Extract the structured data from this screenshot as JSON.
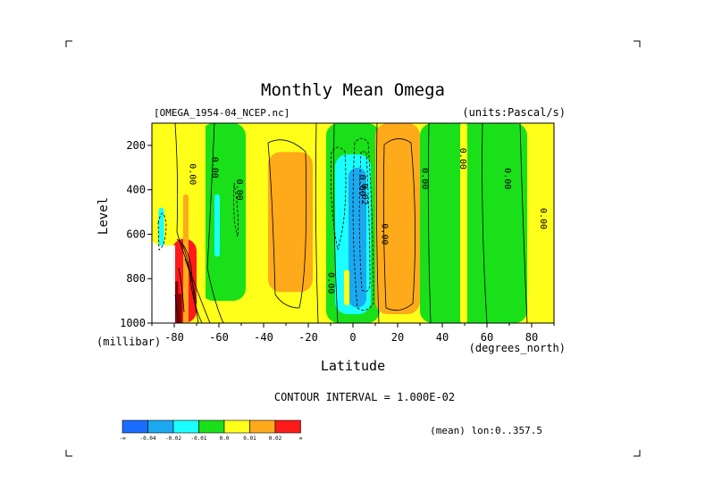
{
  "chart_data": {
    "type": "contour",
    "title": "Monthly Mean Omega",
    "file_label": "[OMEGA_1954-04_NCEP.nc]",
    "units_label": "(units:Pascal/s)",
    "xlabel": "Latitude",
    "x_units": "(degrees_north)",
    "ylabel": "Level",
    "y_units": "(millibar)",
    "x_ticks": [
      -80,
      -60,
      -40,
      -20,
      0,
      20,
      40,
      60,
      80
    ],
    "x_tick_labels": [
      "-80",
      "-60",
      "-40",
      "-20",
      "0",
      "20",
      "40",
      "60",
      "80"
    ],
    "y_ticks": [
      200,
      400,
      600,
      800,
      1000
    ],
    "y_tick_labels": [
      "200",
      "400",
      "600",
      "800",
      "1000"
    ],
    "xlim": [
      -90,
      90
    ],
    "ylim": [
      1000,
      100
    ],
    "contour_interval_text": "CONTOUR INTERVAL = 1.000E-02",
    "mean_text": "(mean) lon:0..357.5",
    "contour_labels": [
      "0.00",
      "0.00",
      "0.00",
      "0.00",
      "0.02",
      "0.00",
      "0.00",
      "0.00",
      "0.00",
      "0.00",
      "0.00"
    ],
    "colorbar": {
      "colors": [
        "#1a6cff",
        "#1aa9f0",
        "#1affff",
        "#1ae01a",
        "#ffff1a",
        "#ffaa1a",
        "#ff1a1a"
      ],
      "labels": [
        "-∞",
        "-0.04",
        "-0.02",
        "-0.01",
        "0.0",
        "0.01",
        "0.02",
        "∞"
      ]
    },
    "regions": [
      {
        "level": "0.0 to 0.01",
        "color": "#ffff1a",
        "lat": [
          -90,
          90
        ],
        "p": [
          100,
          1000
        ]
      },
      {
        "level": "-0.01 to 0.0",
        "color": "#1ae01a",
        "lat": [
          -68,
          -48
        ],
        "p": [
          100,
          900
        ]
      },
      {
        "level": "-0.01 to 0.0",
        "color": "#1ae01a",
        "lat": [
          -12,
          12
        ],
        "p": [
          100,
          1000
        ]
      },
      {
        "level": "-0.01 to 0.0",
        "color": "#1ae01a",
        "lat": [
          30,
          78
        ],
        "p": [
          100,
          1000
        ]
      },
      {
        "level": "0.01 to 0.02",
        "color": "#ffaa1a",
        "lat": [
          -38,
          -18
        ],
        "p": [
          230,
          860
        ]
      },
      {
        "level": "0.01 to 0.02",
        "color": "#ffaa1a",
        "lat": [
          10,
          30
        ],
        "p": [
          100,
          960
        ]
      },
      {
        "level": "-0.02 to -0.01",
        "color": "#1affff",
        "lat": [
          -8,
          8
        ],
        "p": [
          240,
          960
        ]
      },
      {
        "level": "-0.04 to -0.02",
        "color": "#1aa9f0",
        "lat": [
          -2,
          6
        ],
        "p": [
          300,
          930
        ]
      },
      {
        "level": "0.02 and above",
        "color": "#ff1a1a",
        "lat": [
          -81,
          -70
        ],
        "p": [
          620,
          1000
        ]
      }
    ],
    "grid": false,
    "legend": "bottom-left colorbar"
  }
}
